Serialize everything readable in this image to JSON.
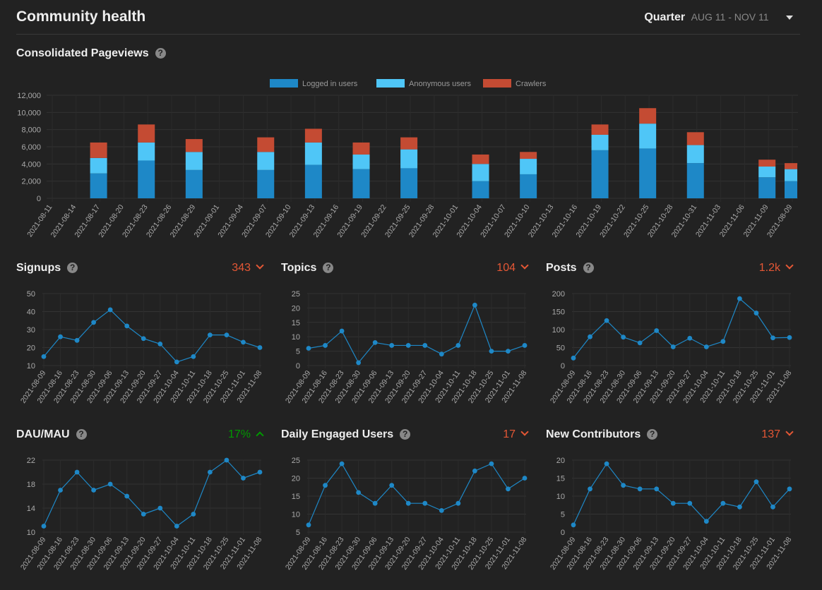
{
  "header": {
    "title": "Community health",
    "period_label": "Quarter",
    "period_range": "AUG 11 - NOV 11"
  },
  "chart_data": [
    {
      "id": "pageviews",
      "type": "bar",
      "title": "Consolidated Pageviews",
      "stacked": true,
      "legend_position": "top",
      "ylim": [
        0,
        12000
      ],
      "y_ticks": [
        0,
        2000,
        4000,
        6000,
        8000,
        10000,
        12000
      ],
      "x_tick_labels": [
        "2021-08-11",
        "2021-08-14",
        "2021-08-17",
        "2021-08-20",
        "2021-08-23",
        "2021-08-26",
        "2021-08-29",
        "2021-09-01",
        "2021-09-04",
        "2021-09-07",
        "2021-09-10",
        "2021-09-13",
        "2021-09-16",
        "2021-09-19",
        "2021-09-22",
        "2021-09-25",
        "2021-09-28",
        "2021-10-01",
        "2021-10-04",
        "2021-10-07",
        "2021-10-10",
        "2021-10-13",
        "2021-10-16",
        "2021-10-19",
        "2021-10-22",
        "2021-10-25",
        "2021-10-28",
        "2021-10-31",
        "2021-11-03",
        "2021-11-06",
        "2021-11-09",
        "2021-08-09"
      ],
      "bar_tick_index": [
        2,
        4,
        6,
        9,
        11,
        13,
        15,
        18,
        20,
        23,
        25,
        27,
        30,
        31
      ],
      "series": [
        {
          "name": "Logged in users",
          "color": "#1e88c7",
          "values": [
            2900,
            4400,
            3300,
            3300,
            3900,
            3400,
            3500,
            2000,
            2800,
            5600,
            5800,
            4100,
            2450,
            2000
          ]
        },
        {
          "name": "Anonymous users",
          "color": "#4fc6f7",
          "values": [
            1800,
            2100,
            2100,
            2100,
            2600,
            1700,
            2200,
            2000,
            1800,
            1800,
            2900,
            2100,
            1250,
            1400
          ]
        },
        {
          "name": "Crawlers",
          "color": "#c44b33",
          "values": [
            1800,
            2100,
            1500,
            1700,
            1600,
            1400,
            1400,
            1100,
            800,
            1200,
            1800,
            1500,
            800,
            700
          ]
        }
      ]
    },
    {
      "id": "signups",
      "type": "line",
      "title": "Signups",
      "trend_value": "343",
      "trend": "down",
      "ylim": [
        10,
        50
      ],
      "y_ticks": [
        10,
        20,
        30,
        40,
        50
      ],
      "x_tick_labels": [
        "2021-08-09",
        "2021-08-16",
        "2021-08-23",
        "2021-08-30",
        "2021-09-06",
        "2021-09-13",
        "2021-09-20",
        "2021-09-27",
        "2021-10-04",
        "2021-10-11",
        "2021-10-18",
        "2021-10-25",
        "2021-11-01",
        "2021-11-08"
      ],
      "values": [
        15,
        26,
        24,
        34,
        41,
        32,
        25,
        22,
        12,
        15,
        27,
        27,
        23,
        20
      ]
    },
    {
      "id": "topics",
      "type": "line",
      "title": "Topics",
      "trend_value": "104",
      "trend": "down",
      "ylim": [
        0,
        25
      ],
      "y_ticks": [
        0,
        5,
        10,
        15,
        20,
        25
      ],
      "x_tick_labels": [
        "2021-08-09",
        "2021-08-16",
        "2021-08-23",
        "2021-08-30",
        "2021-09-06",
        "2021-09-13",
        "2021-09-20",
        "2021-09-27",
        "2021-10-04",
        "2021-10-11",
        "2021-10-18",
        "2021-10-25",
        "2021-11-01",
        "2021-11-08"
      ],
      "values": [
        6,
        7,
        12,
        1,
        8,
        7,
        7,
        7,
        4,
        7,
        21,
        5,
        5,
        7
      ]
    },
    {
      "id": "posts",
      "type": "line",
      "title": "Posts",
      "trend_value": "1.2k",
      "trend": "down",
      "ylim": [
        0,
        200
      ],
      "y_ticks": [
        0,
        50,
        100,
        150,
        200
      ],
      "x_tick_labels": [
        "2021-08-09",
        "2021-08-16",
        "2021-08-23",
        "2021-08-30",
        "2021-09-06",
        "2021-09-13",
        "2021-09-20",
        "2021-09-27",
        "2021-10-04",
        "2021-10-11",
        "2021-10-18",
        "2021-10-25",
        "2021-11-01",
        "2021-11-08"
      ],
      "values": [
        21,
        80,
        125,
        79,
        63,
        97,
        52,
        76,
        52,
        67,
        186,
        146,
        77,
        78
      ]
    },
    {
      "id": "daumau",
      "type": "line",
      "title": "DAU/MAU",
      "trend_value": "17%",
      "trend": "up",
      "ylim": [
        10,
        22
      ],
      "y_ticks": [
        10,
        14,
        18,
        22
      ],
      "x_tick_labels": [
        "2021-08-09",
        "2021-08-16",
        "2021-08-23",
        "2021-08-30",
        "2021-09-06",
        "2021-09-13",
        "2021-09-20",
        "2021-09-27",
        "2021-10-04",
        "2021-10-11",
        "2021-10-18",
        "2021-10-25",
        "2021-11-01",
        "2021-11-08"
      ],
      "values": [
        11,
        17,
        20,
        17,
        18,
        16,
        13,
        14,
        11,
        13,
        20,
        22,
        19,
        20
      ]
    },
    {
      "id": "engaged",
      "type": "line",
      "title": "Daily Engaged Users",
      "trend_value": "17",
      "trend": "down",
      "ylim": [
        5,
        25
      ],
      "y_ticks": [
        5,
        10,
        15,
        20,
        25
      ],
      "x_tick_labels": [
        "2021-08-09",
        "2021-08-16",
        "2021-08-23",
        "2021-08-30",
        "2021-09-06",
        "2021-09-13",
        "2021-09-20",
        "2021-09-27",
        "2021-10-04",
        "2021-10-11",
        "2021-10-18",
        "2021-10-25",
        "2021-11-01",
        "2021-11-08"
      ],
      "values": [
        7,
        18,
        24,
        16,
        13,
        18,
        13,
        13,
        11,
        13,
        22,
        24,
        17,
        20
      ]
    },
    {
      "id": "contributors",
      "type": "line",
      "title": "New Contributors",
      "trend_value": "137",
      "trend": "down",
      "ylim": [
        0,
        20
      ],
      "y_ticks": [
        0,
        5,
        10,
        15,
        20
      ],
      "x_tick_labels": [
        "2021-08-09",
        "2021-08-16",
        "2021-08-23",
        "2021-08-30",
        "2021-09-06",
        "2021-09-13",
        "2021-09-20",
        "2021-09-27",
        "2021-10-04",
        "2021-10-11",
        "2021-10-18",
        "2021-10-25",
        "2021-11-01",
        "2021-11-08"
      ],
      "values": [
        2,
        12,
        19,
        13,
        12,
        12,
        8,
        8,
        3,
        8,
        7,
        14,
        7,
        12
      ]
    }
  ],
  "colors": {
    "line": "#1e88c7",
    "trend_down": "#e45735",
    "trend_up": "#009900"
  },
  "help_icon_glyph": "?"
}
